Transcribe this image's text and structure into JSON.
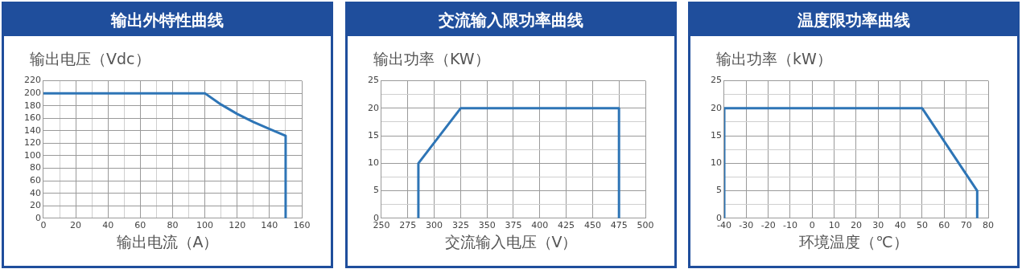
{
  "chart_data": [
    {
      "type": "line",
      "title": "输出外特性曲线",
      "xlabel": "输出电流（A）",
      "ylabel": "输出电压（Vdc）",
      "x": [
        0,
        100,
        110,
        120,
        130,
        140,
        150,
        150
      ],
      "series": [
        {
          "color": "#2e75b6",
          "values": [
            200,
            200,
            182,
            167,
            154,
            143,
            132,
            0
          ]
        }
      ],
      "xlim": [
        0,
        160
      ],
      "xticks": [
        0,
        {
          "value": 10,
          "label": null
        },
        20,
        {
          "value": 30,
          "label": null
        },
        40,
        {
          "value": 50,
          "label": null
        },
        60,
        {
          "value": 70,
          "label": null
        },
        80,
        {
          "value": 90,
          "label": null
        },
        100,
        {
          "value": 110,
          "label": null
        },
        120,
        {
          "value": 130,
          "label": null
        },
        140,
        {
          "value": 150,
          "label": null
        },
        160
      ],
      "ylim": [
        0,
        220
      ],
      "yticks": [
        0,
        20,
        40,
        60,
        80,
        100,
        120,
        140,
        160,
        180,
        200,
        220
      ],
      "grid": true,
      "legend": false,
      "marker": "none",
      "line_style": "solid"
    },
    {
      "type": "line",
      "title": "交流输入限功率曲线",
      "xlabel": "交流输入电压（V）",
      "ylabel": "输出功率（KW）",
      "x": [
        285,
        285,
        325,
        475,
        475
      ],
      "series": [
        {
          "color": "#2e75b6",
          "values": [
            0,
            10,
            20,
            20,
            0
          ]
        }
      ],
      "xlim": [
        250,
        500
      ],
      "xticks": [
        250,
        275,
        300,
        325,
        350,
        375,
        400,
        425,
        450,
        475,
        500
      ],
      "ylim": [
        0,
        25
      ],
      "yticks": [
        0,
        {
          "value": 2.5,
          "label": null
        },
        5,
        {
          "value": 7.5,
          "label": null
        },
        10,
        {
          "value": 12.5,
          "label": null
        },
        15,
        {
          "value": 17.5,
          "label": null
        },
        20,
        {
          "value": 22.5,
          "label": null
        },
        25
      ],
      "grid": true,
      "legend": false,
      "marker": "none",
      "line_style": "solid"
    },
    {
      "type": "line",
      "title": "温度限功率曲线",
      "xlabel": "环境温度（℃）",
      "ylabel": "输出功率（kW）",
      "x": [
        -40,
        -40,
        50,
        75,
        75
      ],
      "series": [
        {
          "color": "#2e75b6",
          "values": [
            0,
            20,
            20,
            5,
            0
          ]
        }
      ],
      "xlim": [
        -40,
        80
      ],
      "xticks": [
        -40,
        -30,
        -20,
        -10,
        0,
        10,
        20,
        30,
        40,
        50,
        60,
        70,
        80
      ],
      "ylim": [
        0,
        25
      ],
      "yticks": [
        0,
        {
          "value": 2.5,
          "label": null
        },
        5,
        {
          "value": 7.5,
          "label": null
        },
        10,
        {
          "value": 12.5,
          "label": null
        },
        15,
        {
          "value": 17.5,
          "label": null
        },
        20,
        {
          "value": 22.5,
          "label": null
        },
        25
      ],
      "grid": true,
      "legend": false,
      "marker": "none",
      "line_style": "solid"
    }
  ]
}
